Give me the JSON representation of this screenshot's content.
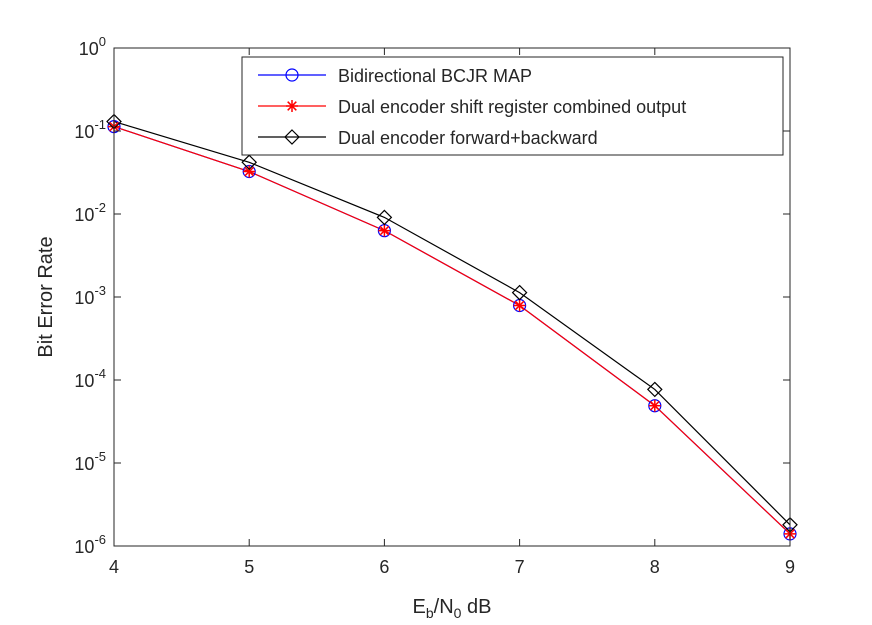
{
  "chart_data": {
    "type": "line",
    "xlabel": {
      "base": "E",
      "sub1": "b",
      "mid": "/N",
      "sub2": "0",
      "tail": " dB"
    },
    "ylabel": "Bit Error Rate",
    "x": [
      4,
      5,
      6,
      7,
      8,
      9
    ],
    "xlim": [
      4,
      9
    ],
    "ylim": [
      1e-06,
      1
    ],
    "yscale": "log",
    "x_ticks": [
      "4",
      "5",
      "6",
      "7",
      "8",
      "9"
    ],
    "y_ticks": [
      {
        "base": "10",
        "exp": "0",
        "value": 1
      },
      {
        "base": "10",
        "exp": "-1",
        "value": 0.1
      },
      {
        "base": "10",
        "exp": "-2",
        "value": 0.01
      },
      {
        "base": "10",
        "exp": "-3",
        "value": 0.001
      },
      {
        "base": "10",
        "exp": "-4",
        "value": 0.0001
      },
      {
        "base": "10",
        "exp": "-5",
        "value": 1e-05
      },
      {
        "base": "10",
        "exp": "-6",
        "value": 1e-06
      }
    ],
    "grid": false,
    "legend_position": "top-right",
    "series": [
      {
        "name": "Bidirectional BCJR MAP",
        "color": "#0000ff",
        "marker": "circle",
        "values": [
          0.113,
          0.0325,
          0.0063,
          0.00079,
          4.9e-05,
          1.4e-06
        ]
      },
      {
        "name": "Dual encoder shift register combined output",
        "color": "#ff0000",
        "marker": "asterisk",
        "values": [
          0.113,
          0.0325,
          0.0063,
          0.00079,
          4.9e-05,
          1.4e-06
        ]
      },
      {
        "name": "Dual encoder forward+backward",
        "color": "#000000",
        "marker": "diamond",
        "values": [
          0.13,
          0.042,
          0.0091,
          0.00113,
          7.7e-05,
          1.8e-06
        ]
      }
    ]
  }
}
